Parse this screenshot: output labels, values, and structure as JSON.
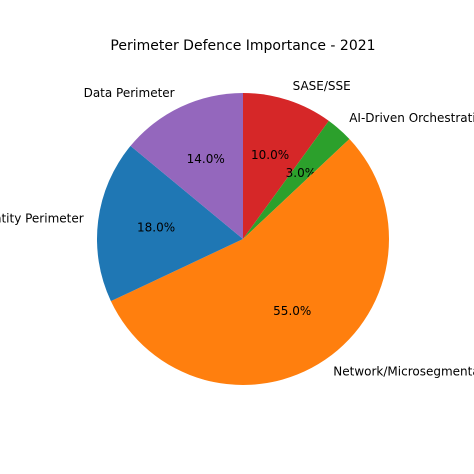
{
  "chart_data": {
    "type": "pie",
    "title": "Perimeter Defence Importance - 2021",
    "categories": [
      "SASE/SSE",
      "AI-Driven Orchestration",
      "Network/Microsegmentation",
      "Identity Perimeter",
      "Data Perimeter"
    ],
    "values": [
      10.0,
      3.0,
      55.0,
      18.0,
      14.0
    ],
    "value_labels": [
      "10.0%",
      "3.0%",
      "55.0%",
      "18.0%",
      "14.0%"
    ],
    "colors": [
      "#d62728",
      "#2ca02c",
      "#ff7f0e",
      "#1f77b4",
      "#9467bd"
    ]
  }
}
